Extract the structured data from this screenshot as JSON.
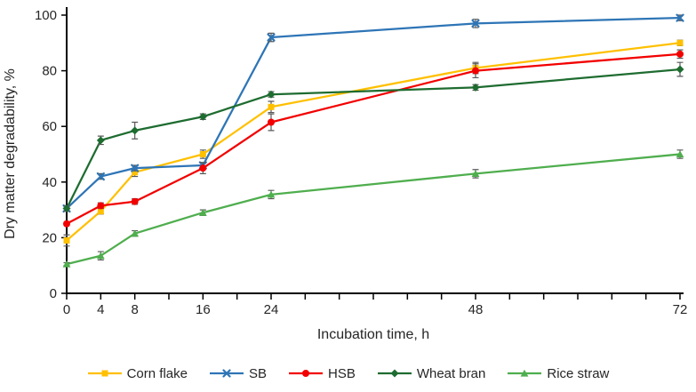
{
  "chart_data": {
    "type": "line",
    "title": "",
    "xlabel": "Incubation time, h",
    "ylabel": "Dry matter degradability, %",
    "xlim": [
      0,
      72
    ],
    "ylim": [
      0,
      100
    ],
    "x": [
      0,
      4,
      8,
      16,
      24,
      48,
      72
    ],
    "x_labeled_ticks": [
      0,
      4,
      8,
      16,
      24,
      48,
      72
    ],
    "x_minor_tick_step": 4,
    "y_ticks": [
      0,
      20,
      40,
      60,
      80,
      100
    ],
    "grid": false,
    "legend_position": "bottom",
    "error_bars": true,
    "error_bar_color": "#595959",
    "axis_color": "#000000",
    "text_color": "#262626",
    "series": [
      {
        "name": "Corn flake",
        "color": "#FFC000",
        "marker": "square",
        "values": [
          19,
          29.5,
          43.5,
          50,
          67,
          81,
          90
        ],
        "errors": [
          2,
          1,
          1.5,
          1.5,
          2,
          2,
          1
        ]
      },
      {
        "name": "SB",
        "color": "#2E75B6",
        "marker": "x",
        "values": [
          30.5,
          42,
          45,
          46,
          92,
          97,
          99
        ],
        "errors": [
          1,
          1,
          1,
          1,
          1.5,
          1.5,
          1
        ]
      },
      {
        "name": "HSB",
        "color": "#F20000",
        "marker": "circle",
        "values": [
          25,
          31.5,
          33,
          45,
          61.5,
          80,
          86
        ],
        "errors": [
          0.5,
          1,
          1,
          2,
          3,
          2.5,
          1.5
        ]
      },
      {
        "name": "Wheat bran",
        "color": "#1E6C30",
        "marker": "diamond",
        "values": [
          30.5,
          55,
          58.5,
          63.5,
          71.5,
          74,
          80.5
        ],
        "errors": [
          1,
          1.5,
          3,
          1,
          1,
          1,
          2.5
        ]
      },
      {
        "name": "Rice straw",
        "color": "#4FAE4E",
        "marker": "triangle",
        "values": [
          10.5,
          13.5,
          21.5,
          29,
          35.5,
          43,
          50
        ],
        "errors": [
          0.5,
          1.5,
          1,
          1,
          1.5,
          1.5,
          1.5
        ]
      }
    ]
  }
}
